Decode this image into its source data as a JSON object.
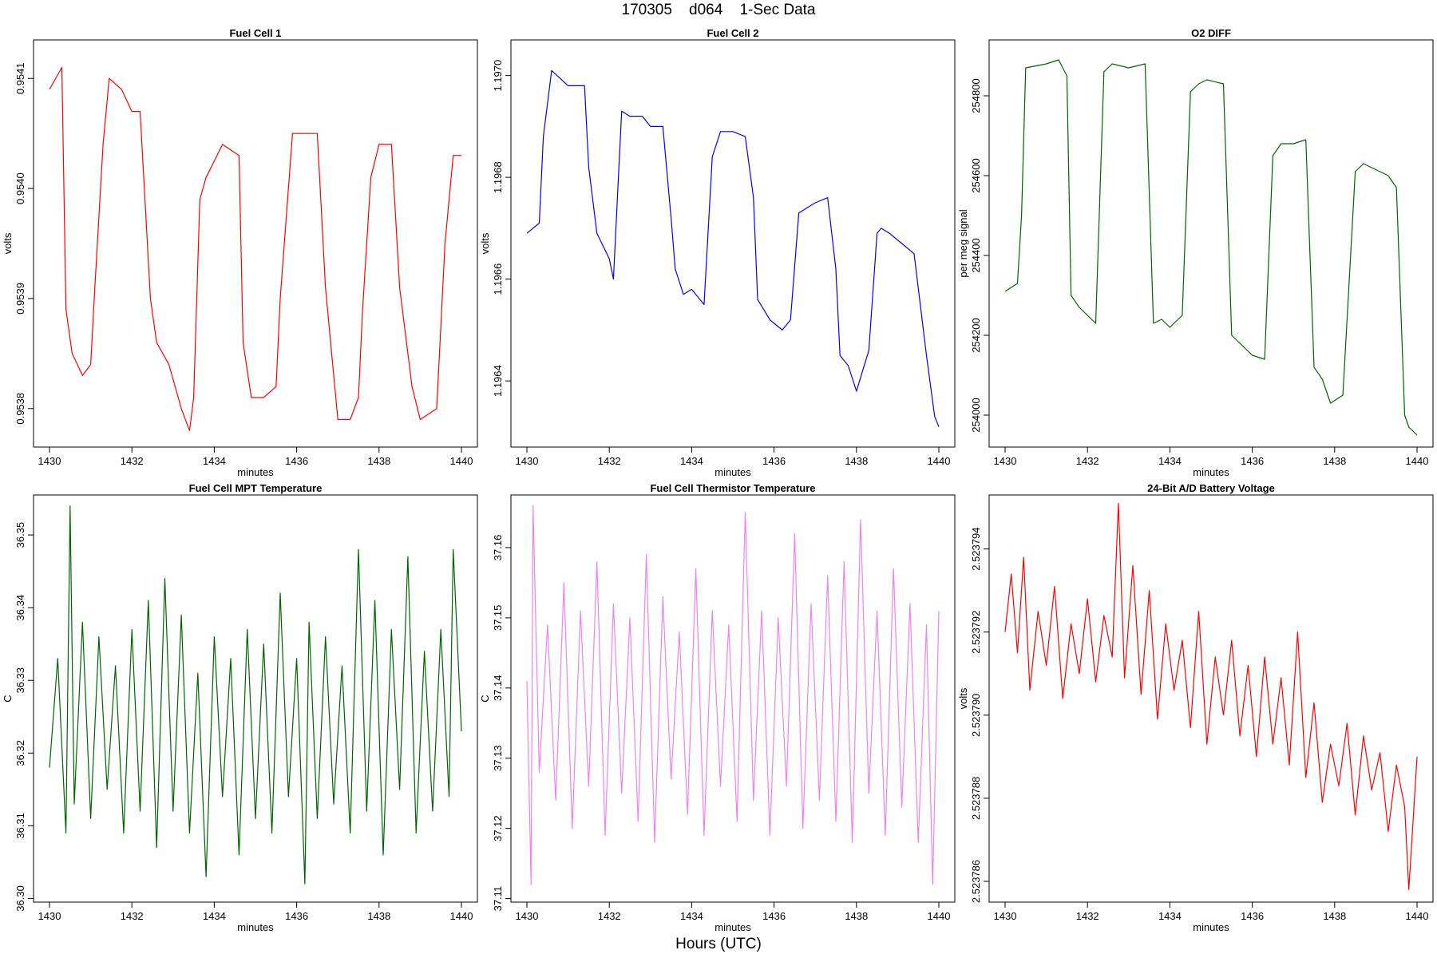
{
  "figure": {
    "title_parts": [
      "170305",
      "d064",
      "1-Sec Data"
    ],
    "xlabel": "Hours (UTC)"
  },
  "chart_data": [
    {
      "type": "line",
      "title": "Fuel Cell 1",
      "xlabel": "minutes",
      "ylabel": "volts",
      "color": "#ff0000",
      "xlim": [
        1430,
        1440
      ],
      "ylim": [
        0.953765,
        0.954135
      ],
      "xticks": [
        1430,
        1432,
        1434,
        1436,
        1438,
        1440
      ],
      "xtick_labels": [
        "1430",
        "1432",
        "1434",
        "1436",
        "1438",
        "1440"
      ],
      "yticks": [
        0.9538,
        0.9539,
        0.954,
        0.9541
      ],
      "ytick_labels": [
        "0.9538",
        "0.9539",
        "0.9540",
        "0.9541"
      ],
      "x": [
        1430.0,
        1430.3,
        1430.4,
        1430.55,
        1430.8,
        1431.0,
        1431.1,
        1431.3,
        1431.45,
        1431.75,
        1432.0,
        1432.2,
        1432.45,
        1432.6,
        1432.9,
        1433.2,
        1433.4,
        1433.5,
        1433.65,
        1433.8,
        1434.2,
        1434.6,
        1434.7,
        1434.9,
        1435.2,
        1435.5,
        1435.6,
        1435.9,
        1436.2,
        1436.5,
        1436.7,
        1437.0,
        1437.3,
        1437.5,
        1437.6,
        1437.8,
        1438.0,
        1438.3,
        1438.5,
        1438.8,
        1439.0,
        1439.4,
        1439.6,
        1439.8,
        1440.0
      ],
      "values": [
        0.95409,
        0.95411,
        0.95389,
        0.95385,
        0.95383,
        0.95384,
        0.95391,
        0.95404,
        0.9541,
        0.95409,
        0.95407,
        0.95407,
        0.9539,
        0.95386,
        0.95384,
        0.9538,
        0.95378,
        0.95381,
        0.95399,
        0.95401,
        0.95404,
        0.95403,
        0.95386,
        0.95381,
        0.95381,
        0.95382,
        0.9539,
        0.95405,
        0.95405,
        0.95405,
        0.95391,
        0.95379,
        0.95379,
        0.95381,
        0.95389,
        0.95401,
        0.95404,
        0.95404,
        0.95391,
        0.95382,
        0.95379,
        0.9538,
        0.95395,
        0.95403,
        0.95403
      ]
    },
    {
      "type": "line",
      "title": "Fuel Cell 2",
      "xlabel": "minutes",
      "ylabel": "volts",
      "color": "#0000ff",
      "xlim": [
        1430,
        1440
      ],
      "ylim": [
        1.19627,
        1.19707
      ],
      "xticks": [
        1430,
        1432,
        1434,
        1436,
        1438,
        1440
      ],
      "xtick_labels": [
        "1430",
        "1432",
        "1434",
        "1436",
        "1438",
        "1440"
      ],
      "yticks": [
        1.1964,
        1.1966,
        1.1968,
        1.197
      ],
      "ytick_labels": [
        "1.1964",
        "1.1966",
        "1.1968",
        "1.1970"
      ],
      "x": [
        1430.0,
        1430.3,
        1430.4,
        1430.6,
        1431.0,
        1431.4,
        1431.5,
        1431.7,
        1432.0,
        1432.1,
        1432.3,
        1432.5,
        1432.8,
        1433.0,
        1433.3,
        1433.5,
        1433.6,
        1433.8,
        1434.0,
        1434.3,
        1434.5,
        1434.7,
        1435.0,
        1435.3,
        1435.5,
        1435.6,
        1435.9,
        1436.2,
        1436.4,
        1436.6,
        1437.0,
        1437.3,
        1437.5,
        1437.6,
        1437.8,
        1438.0,
        1438.3,
        1438.5,
        1438.6,
        1438.8,
        1439.1,
        1439.4,
        1439.7,
        1439.9,
        1440.0
      ],
      "values": [
        1.19669,
        1.19671,
        1.19688,
        1.19701,
        1.19698,
        1.19698,
        1.19682,
        1.19669,
        1.19664,
        1.1966,
        1.19693,
        1.19692,
        1.19692,
        1.1969,
        1.1969,
        1.19672,
        1.19662,
        1.19657,
        1.19658,
        1.19655,
        1.19684,
        1.19689,
        1.19689,
        1.19688,
        1.19676,
        1.19656,
        1.19652,
        1.1965,
        1.19652,
        1.19673,
        1.19675,
        1.19676,
        1.19662,
        1.19645,
        1.19643,
        1.19638,
        1.19646,
        1.19669,
        1.1967,
        1.19669,
        1.19667,
        1.19665,
        1.19645,
        1.19633,
        1.19631
      ]
    },
    {
      "type": "line",
      "title": "O2 DIFF",
      "xlabel": "minutes",
      "ylabel": "per meg signal",
      "color": "#006400",
      "xlim": [
        1430,
        1440
      ],
      "ylim": [
        253920,
        254940
      ],
      "xticks": [
        1430,
        1432,
        1434,
        1436,
        1438,
        1440
      ],
      "xtick_labels": [
        "1430",
        "1432",
        "1434",
        "1436",
        "1438",
        "1440"
      ],
      "yticks": [
        254000,
        254200,
        254400,
        254600,
        254800
      ],
      "ytick_labels": [
        "254000",
        "254200",
        "254400",
        "254600",
        "254800"
      ],
      "x": [
        1430.0,
        1430.3,
        1430.4,
        1430.5,
        1431.0,
        1431.3,
        1431.5,
        1431.6,
        1431.8,
        1432.0,
        1432.2,
        1432.4,
        1432.6,
        1433.0,
        1433.4,
        1433.6,
        1433.8,
        1434.0,
        1434.3,
        1434.5,
        1434.7,
        1434.9,
        1435.3,
        1435.5,
        1435.7,
        1436.0,
        1436.3,
        1436.5,
        1436.7,
        1437.0,
        1437.3,
        1437.5,
        1437.7,
        1437.9,
        1438.2,
        1438.5,
        1438.7,
        1438.9,
        1439.3,
        1439.5,
        1439.7,
        1439.8,
        1440.0
      ],
      "values": [
        254310,
        254330,
        254500,
        254870,
        254880,
        254890,
        254850,
        254300,
        254270,
        254250,
        254230,
        254860,
        254880,
        254870,
        254880,
        254230,
        254240,
        254220,
        254250,
        254810,
        254830,
        254840,
        254830,
        254200,
        254180,
        254150,
        254140,
        254650,
        254680,
        254680,
        254690,
        254120,
        254090,
        254030,
        254050,
        254610,
        254630,
        254620,
        254600,
        254570,
        254000,
        253970,
        253950
      ]
    },
    {
      "type": "line",
      "title": "Fuel Cell MPT Temperature",
      "xlabel": "minutes",
      "ylabel": "C",
      "color": "#006400",
      "xlim": [
        1430,
        1440
      ],
      "ylim": [
        36.2995,
        36.3555
      ],
      "xticks": [
        1430,
        1432,
        1434,
        1436,
        1438,
        1440
      ],
      "xtick_labels": [
        "1430",
        "1432",
        "1434",
        "1436",
        "1438",
        "1440"
      ],
      "yticks": [
        36.3,
        36.31,
        36.32,
        36.33,
        36.34,
        36.35
      ],
      "ytick_labels": [
        "36.30",
        "36.31",
        "36.32",
        "36.33",
        "36.34",
        "36.35"
      ],
      "x": [
        1430.0,
        1430.2,
        1430.4,
        1430.5,
        1430.6,
        1430.8,
        1431.0,
        1431.2,
        1431.4,
        1431.6,
        1431.8,
        1432.0,
        1432.2,
        1432.4,
        1432.6,
        1432.8,
        1433.0,
        1433.2,
        1433.4,
        1433.6,
        1433.8,
        1434.0,
        1434.2,
        1434.4,
        1434.6,
        1434.8,
        1435.0,
        1435.2,
        1435.4,
        1435.6,
        1435.8,
        1436.0,
        1436.2,
        1436.3,
        1436.5,
        1436.7,
        1436.9,
        1437.1,
        1437.3,
        1437.5,
        1437.7,
        1437.9,
        1438.1,
        1438.3,
        1438.5,
        1438.7,
        1438.9,
        1439.1,
        1439.3,
        1439.5,
        1439.7,
        1439.8,
        1440.0
      ],
      "values": [
        36.318,
        36.333,
        36.309,
        36.354,
        36.313,
        36.338,
        36.311,
        36.336,
        36.315,
        36.332,
        36.309,
        36.337,
        36.312,
        36.341,
        36.307,
        36.344,
        36.312,
        36.339,
        36.309,
        36.331,
        36.303,
        36.336,
        36.314,
        36.333,
        36.306,
        36.337,
        36.311,
        36.335,
        36.309,
        36.342,
        36.314,
        36.333,
        36.302,
        36.338,
        36.311,
        36.336,
        36.313,
        36.332,
        36.309,
        36.348,
        36.312,
        36.341,
        36.306,
        36.337,
        36.315,
        36.347,
        36.309,
        36.334,
        36.312,
        36.337,
        36.314,
        36.348,
        36.323
      ]
    },
    {
      "type": "line",
      "title": "Fuel Cell Thermistor Temperature",
      "xlabel": "minutes",
      "ylabel": "C",
      "color": "#ee82ee",
      "xlim": [
        1430,
        1440
      ],
      "ylim": [
        37.1095,
        37.1675
      ],
      "xticks": [
        1430,
        1432,
        1434,
        1436,
        1438,
        1440
      ],
      "xtick_labels": [
        "1430",
        "1432",
        "1434",
        "1436",
        "1438",
        "1440"
      ],
      "yticks": [
        37.11,
        37.12,
        37.13,
        37.14,
        37.15,
        37.16
      ],
      "ytick_labels": [
        "37.11",
        "37.12",
        "37.13",
        "37.14",
        "37.15",
        "37.16"
      ],
      "x": [
        1430.0,
        1430.1,
        1430.15,
        1430.3,
        1430.5,
        1430.7,
        1430.9,
        1431.1,
        1431.3,
        1431.5,
        1431.7,
        1431.9,
        1432.1,
        1432.3,
        1432.5,
        1432.7,
        1432.9,
        1433.1,
        1433.3,
        1433.5,
        1433.7,
        1433.9,
        1434.1,
        1434.3,
        1434.5,
        1434.7,
        1434.9,
        1435.1,
        1435.3,
        1435.5,
        1435.7,
        1435.9,
        1436.1,
        1436.3,
        1436.5,
        1436.7,
        1436.9,
        1437.1,
        1437.3,
        1437.5,
        1437.7,
        1437.9,
        1438.1,
        1438.3,
        1438.5,
        1438.7,
        1438.9,
        1439.1,
        1439.3,
        1439.5,
        1439.7,
        1439.85,
        1440.0
      ],
      "values": [
        37.141,
        37.112,
        37.166,
        37.128,
        37.149,
        37.124,
        37.155,
        37.12,
        37.151,
        37.126,
        37.158,
        37.119,
        37.152,
        37.125,
        37.15,
        37.121,
        37.159,
        37.118,
        37.153,
        37.127,
        37.148,
        37.122,
        37.157,
        37.119,
        37.151,
        37.126,
        37.149,
        37.121,
        37.165,
        37.124,
        37.151,
        37.119,
        37.15,
        37.126,
        37.162,
        37.12,
        37.152,
        37.124,
        37.156,
        37.121,
        37.158,
        37.118,
        37.164,
        37.125,
        37.151,
        37.119,
        37.157,
        37.123,
        37.152,
        37.118,
        37.149,
        37.112,
        37.151
      ]
    },
    {
      "type": "line",
      "title": "24-Bit A/D Battery Voltage",
      "xlabel": "minutes",
      "ylabel": "volts",
      "color": "#ff0000",
      "xlim": [
        1430,
        1440
      ],
      "ylim": [
        2.5237855,
        2.5237953
      ],
      "xticks": [
        1430,
        1432,
        1434,
        1436,
        1438,
        1440
      ],
      "xtick_labels": [
        "1430",
        "1432",
        "1434",
        "1436",
        "1438",
        "1440"
      ],
      "yticks": [
        2.523786,
        2.523788,
        2.52379,
        2.523792,
        2.523794
      ],
      "ytick_labels": [
        "2.523786",
        "2.523788",
        "2.523790",
        "2.523792",
        "2.523794"
      ],
      "x": [
        1430.0,
        1430.15,
        1430.3,
        1430.45,
        1430.6,
        1430.8,
        1431.0,
        1431.2,
        1431.4,
        1431.6,
        1431.8,
        1432.0,
        1432.2,
        1432.4,
        1432.6,
        1432.75,
        1432.9,
        1433.1,
        1433.3,
        1433.5,
        1433.7,
        1433.9,
        1434.1,
        1434.3,
        1434.5,
        1434.7,
        1434.9,
        1435.1,
        1435.3,
        1435.5,
        1435.7,
        1435.9,
        1436.1,
        1436.3,
        1436.5,
        1436.7,
        1436.9,
        1437.1,
        1437.3,
        1437.5,
        1437.7,
        1437.9,
        1438.1,
        1438.3,
        1438.5,
        1438.7,
        1438.9,
        1439.1,
        1439.3,
        1439.5,
        1439.7,
        1439.8,
        1440.0
      ],
      "values": [
        2.523792,
        2.5237934,
        2.5237915,
        2.5237938,
        2.5237906,
        2.5237925,
        2.5237912,
        2.5237931,
        2.5237904,
        2.5237922,
        2.523791,
        2.5237928,
        2.5237908,
        2.5237924,
        2.5237914,
        2.5237951,
        2.5237909,
        2.5237936,
        2.5237905,
        2.523793,
        2.5237899,
        2.5237922,
        2.5237906,
        2.5237918,
        2.5237897,
        2.5237925,
        2.5237893,
        2.5237914,
        2.52379,
        2.5237918,
        2.5237895,
        2.5237912,
        2.523789,
        2.5237914,
        2.5237893,
        2.5237909,
        2.5237888,
        2.523792,
        2.5237885,
        2.5237903,
        2.5237879,
        2.5237893,
        2.5237883,
        2.5237898,
        2.5237876,
        2.5237895,
        2.5237882,
        2.5237891,
        2.5237872,
        2.5237888,
        2.5237878,
        2.5237858,
        2.523789
      ]
    }
  ]
}
